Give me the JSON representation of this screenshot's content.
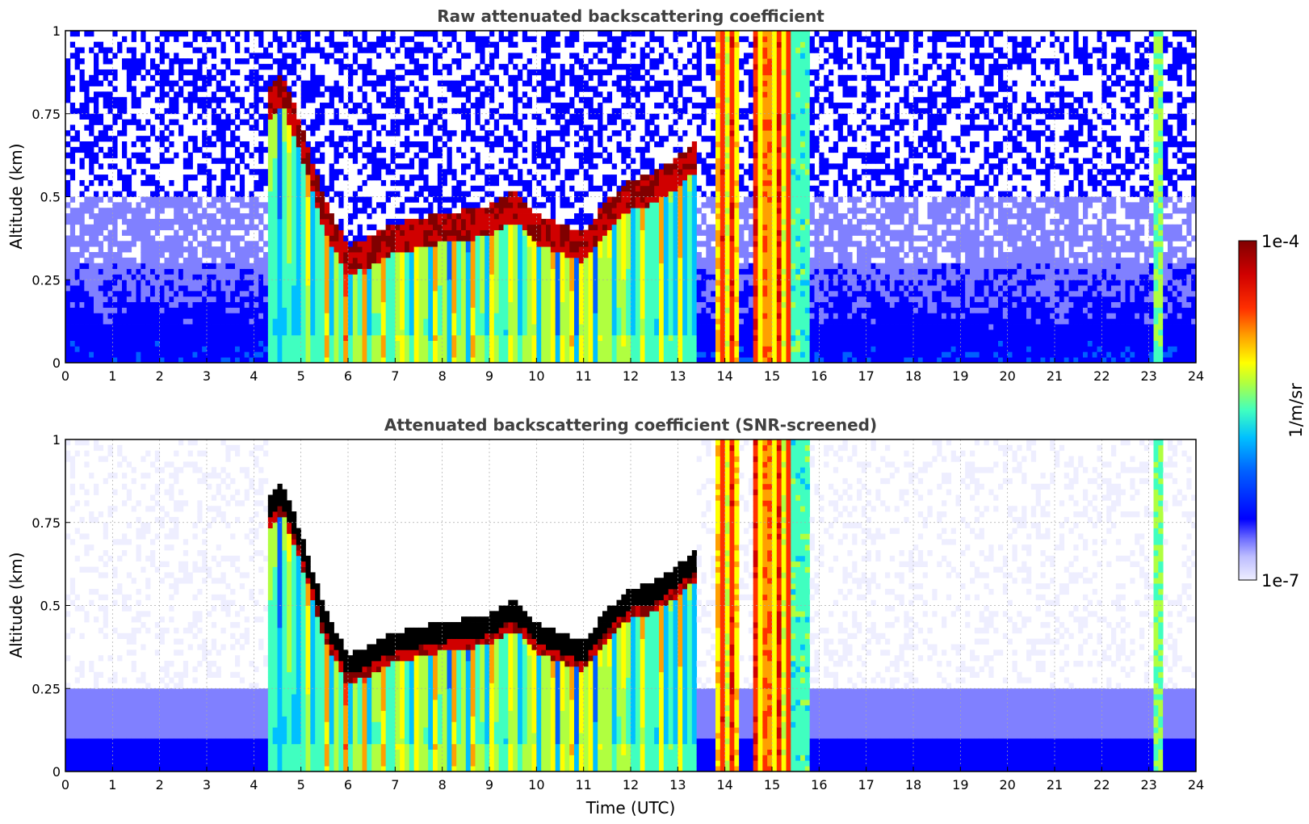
{
  "chart_data": [
    {
      "type": "heatmap",
      "title": "Raw attenuated backscattering coefficient",
      "xlabel": "",
      "ylabel": "Altitude (km)",
      "xlim": [
        0,
        24
      ],
      "ylim": [
        0,
        1
      ],
      "x_ticks": [
        "0",
        "1",
        "2",
        "3",
        "4",
        "5",
        "6",
        "7",
        "8",
        "9",
        "10",
        "11",
        "12",
        "13",
        "14",
        "15",
        "16",
        "17",
        "18",
        "19",
        "20",
        "21",
        "22",
        "23",
        "24"
      ],
      "y_ticks": [
        "0",
        "0.25",
        "0.5",
        "0.75",
        "1"
      ],
      "grid": true,
      "color_scale": "log",
      "value_range": [
        1e-07,
        0.0001
      ],
      "cloud_layer": {
        "description_time": [
          4.3,
          4.6,
          5.0,
          5.5,
          6.0,
          7.0,
          8.0,
          9.0,
          9.5,
          10.0,
          10.5,
          11.0,
          11.5,
          12.0,
          12.5,
          13.0,
          13.4
        ],
        "altitude_km": [
          0.75,
          0.8,
          0.65,
          0.42,
          0.28,
          0.35,
          0.38,
          0.4,
          0.45,
          0.38,
          0.35,
          0.32,
          0.42,
          0.48,
          0.5,
          0.55,
          0.6
        ]
      },
      "precipitation_columns_utc": [
        [
          13.8,
          14.3
        ],
        [
          14.5,
          15.4
        ]
      ]
    },
    {
      "type": "heatmap",
      "title": "Attenuated backscattering coefficient (SNR-screened)",
      "xlabel": "Time (UTC)",
      "ylabel": "Altitude (km)",
      "xlim": [
        0,
        24
      ],
      "ylim": [
        0,
        1
      ],
      "x_ticks": [
        "0",
        "1",
        "2",
        "3",
        "4",
        "5",
        "6",
        "7",
        "8",
        "9",
        "10",
        "11",
        "12",
        "13",
        "14",
        "15",
        "16",
        "17",
        "18",
        "19",
        "20",
        "21",
        "22",
        "23",
        "24"
      ],
      "y_ticks": [
        "0",
        "0.25",
        "0.5",
        "0.75",
        "1"
      ],
      "grid": true,
      "color_scale": "log",
      "value_range": [
        1e-07,
        0.0001
      ]
    }
  ],
  "colorbar": {
    "label": "1/m/sr",
    "max_label": "1e-4",
    "min_label": "1e-7",
    "colormap": "jet",
    "colors": [
      "#eeeeff",
      "#bcbcff",
      "#8080ff",
      "#0000ff",
      "#0060ff",
      "#00c0ff",
      "#40ffc0",
      "#b0ff40",
      "#ffff00",
      "#ffa000",
      "#ff3000",
      "#d00000",
      "#800000"
    ]
  }
}
